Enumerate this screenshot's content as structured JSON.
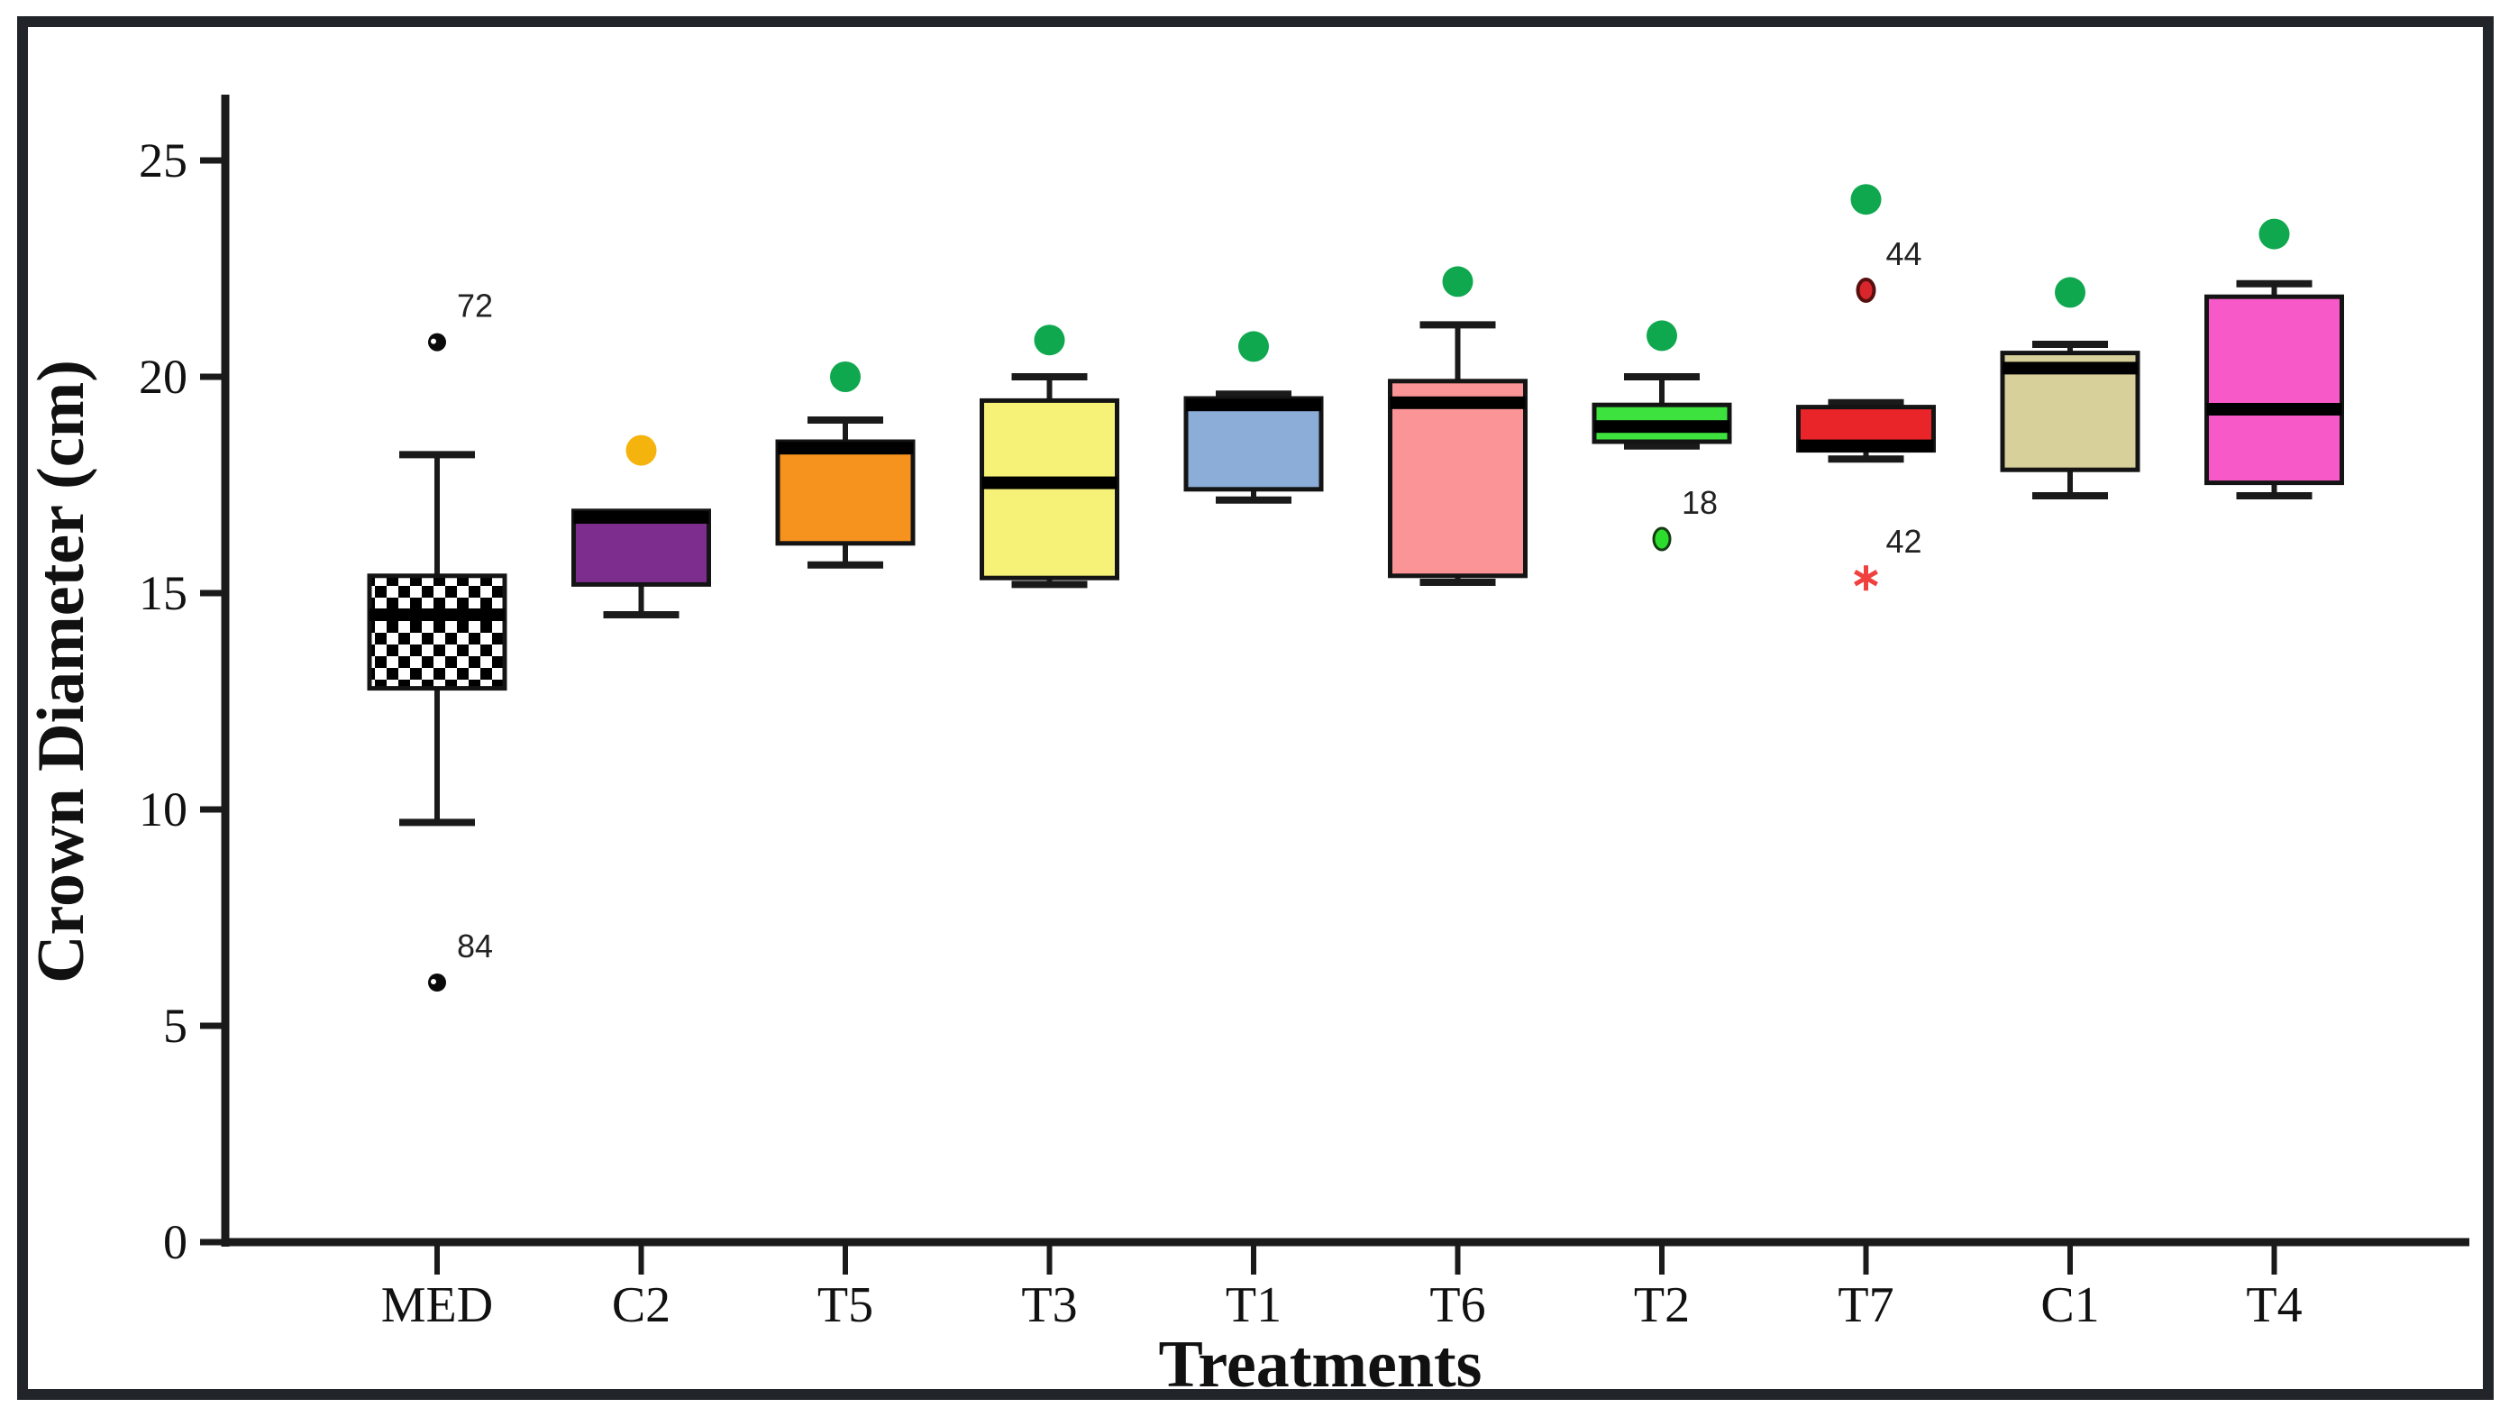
{
  "figure": {
    "background": "#ffffff",
    "frame_color": "#212529",
    "axis_color": "#1a1a1a"
  },
  "chart_data": {
    "type": "box",
    "title": "",
    "xlabel": "Treatments",
    "ylabel": "Crown Diameter (cm)",
    "ylim": [
      0,
      27.6
    ],
    "yticks": [
      0,
      5,
      10,
      15,
      20,
      25
    ],
    "grid": false,
    "legend": "none",
    "categories": [
      "MED",
      "C2",
      "T5",
      "T3",
      "T1",
      "T6",
      "T2",
      "T7",
      "C1",
      "T4"
    ],
    "boxes": [
      {
        "label": "MED",
        "fill": "checker-black-white",
        "whisker_low": 9.7,
        "q1": 12.8,
        "median": 14.5,
        "q3": 15.4,
        "whisker_high": 18.2,
        "mean_marker": null,
        "outliers": [
          {
            "value": 20.8,
            "label": "72",
            "glyph": "black-circle"
          },
          {
            "value": 6.0,
            "label": "84",
            "glyph": "black-circle"
          }
        ]
      },
      {
        "label": "C2",
        "fill": "#7d2d8e",
        "whisker_low": 14.5,
        "q1": 15.2,
        "median": 16.75,
        "q3": 16.9,
        "whisker_high": null,
        "mean_marker": {
          "value": 18.3,
          "color": "#f5b40d"
        },
        "outliers": []
      },
      {
        "label": "T5",
        "fill": "#f6921e",
        "whisker_low": 15.65,
        "q1": 16.15,
        "median": 18.35,
        "q3": 18.5,
        "whisker_high": 19.0,
        "mean_marker": {
          "value": 20.0,
          "color": "#0fa84e"
        },
        "outliers": []
      },
      {
        "label": "T3",
        "fill": "#f6f277",
        "whisker_low": 15.2,
        "q1": 15.35,
        "median": 17.55,
        "q3": 19.45,
        "whisker_high": 20.0,
        "mean_marker": {
          "value": 20.85,
          "color": "#0fa84e"
        },
        "outliers": []
      },
      {
        "label": "T1",
        "fill": "#8badd7",
        "whisker_low": 17.15,
        "q1": 17.4,
        "median": 19.35,
        "q3": 19.5,
        "whisker_high": 19.6,
        "mean_marker": {
          "value": 20.7,
          "color": "#0fa84e"
        },
        "outliers": []
      },
      {
        "label": "T6",
        "fill": "#fa9496",
        "whisker_low": 15.25,
        "q1": 15.4,
        "median": 19.4,
        "q3": 19.9,
        "whisker_high": 21.2,
        "mean_marker": {
          "value": 22.2,
          "color": "#0fa84e"
        },
        "outliers": []
      },
      {
        "label": "T2",
        "fill": "#3ee23e",
        "whisker_low": 18.4,
        "q1": 18.5,
        "median": 18.85,
        "q3": 19.35,
        "whisker_high": 20.0,
        "mean_marker": {
          "value": 20.95,
          "color": "#0fa84e"
        },
        "outliers": [
          {
            "value": 16.25,
            "label": "18",
            "glyph": "green-circle"
          }
        ]
      },
      {
        "label": "T7",
        "fill": "#ea252a",
        "whisker_low": 18.1,
        "q1": 18.3,
        "median": 18.4,
        "q3": 19.3,
        "whisker_high": 19.4,
        "mean_marker": {
          "value": 24.1,
          "color": "#0fa84e"
        },
        "outliers": [
          {
            "value": 22.0,
            "label": "44",
            "glyph": "red-circle"
          },
          {
            "value": 15.35,
            "label": "42",
            "glyph": "red-star"
          }
        ]
      },
      {
        "label": "C1",
        "fill": "#d8d09b",
        "whisker_low": 17.25,
        "q1": 17.85,
        "median": 20.2,
        "q3": 20.55,
        "whisker_high": 20.75,
        "mean_marker": {
          "value": 21.95,
          "color": "#0fa84e"
        },
        "outliers": []
      },
      {
        "label": "T4",
        "fill": "#f75ac8",
        "whisker_low": 17.25,
        "q1": 17.55,
        "median": 19.25,
        "q3": 21.85,
        "whisker_high": 22.15,
        "mean_marker": {
          "value": 23.3,
          "color": "#0fa84e"
        },
        "outliers": []
      }
    ]
  }
}
